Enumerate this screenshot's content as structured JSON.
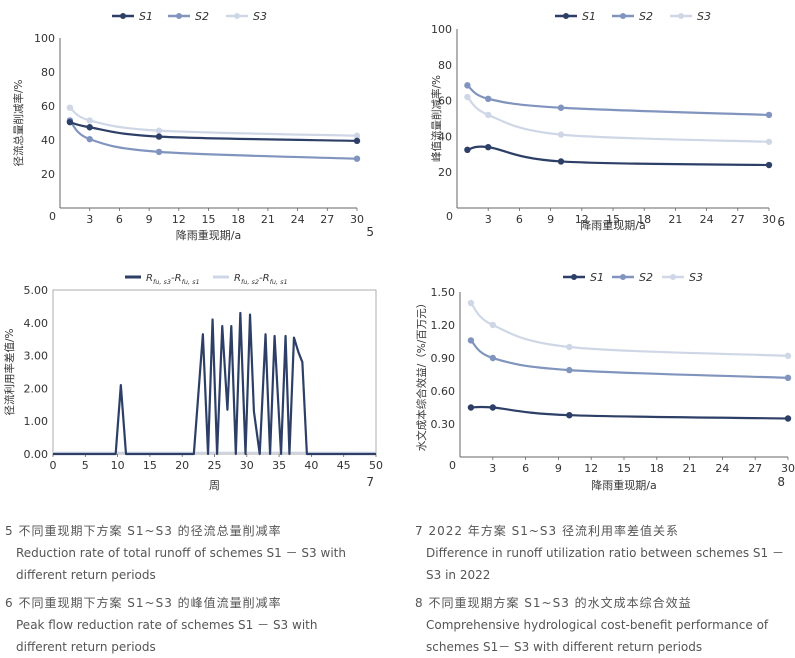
{
  "colors": {
    "S1": "#2d3f66",
    "S2": "#8094be",
    "S3": "#cfd7e7",
    "axis": "#666666",
    "text": "#333333"
  },
  "chart_data": [
    {
      "type": "line",
      "id": "fig5",
      "number": "5",
      "legend": [
        "S1",
        "S2",
        "S3"
      ],
      "ylabel": "径流总量削减率/%",
      "xlabel": "降雨重现期/a",
      "ylim": [
        0,
        100
      ],
      "yticks": [
        "100",
        "80",
        "60",
        "40",
        "20",
        "0"
      ],
      "xticks": [
        "3",
        "6",
        "9",
        "12",
        "15",
        "18",
        "21",
        "24",
        "27",
        "30"
      ],
      "series": [
        {
          "name": "S1",
          "x": [
            1,
            3,
            10,
            30
          ],
          "y": [
            50.5,
            47.5,
            42,
            39.5
          ]
        },
        {
          "name": "S2",
          "x": [
            1,
            3,
            10,
            30
          ],
          "y": [
            51.5,
            40.5,
            33,
            29
          ]
        },
        {
          "name": "S3",
          "x": [
            1,
            3,
            10,
            30
          ],
          "y": [
            59,
            51.5,
            45.5,
            42.5
          ]
        }
      ]
    },
    {
      "type": "line",
      "id": "fig6",
      "number": "6",
      "legend": [
        "S1",
        "S2",
        "S3"
      ],
      "ylabel": "峰值流量削减率/%",
      "xlabel": "降雨重现期/a",
      "ylim": [
        0,
        100
      ],
      "yticks": [
        "100",
        "80",
        "60",
        "40",
        "20",
        "0"
      ],
      "xticks": [
        "3",
        "6",
        "9",
        "12",
        "15",
        "18",
        "21",
        "24",
        "27",
        "30"
      ],
      "series": [
        {
          "name": "S1",
          "x": [
            1,
            3,
            10,
            30
          ],
          "y": [
            32.5,
            34,
            26,
            24
          ]
        },
        {
          "name": "S2",
          "x": [
            1,
            3,
            10,
            30
          ],
          "y": [
            68.5,
            61,
            56,
            52
          ]
        },
        {
          "name": "S3",
          "x": [
            1,
            3,
            10,
            30
          ],
          "y": [
            62,
            52,
            41,
            37
          ]
        }
      ]
    },
    {
      "type": "line",
      "id": "fig7",
      "number": "7",
      "legend": [
        "R",
        "R"
      ],
      "legend_sub": [
        "fu, s3",
        "fu, s2"
      ],
      "legend_mid": [
        "-R",
        "-R"
      ],
      "legend_end": [
        "fu, s1",
        "fu, s1"
      ],
      "ylabel": "径流利用率差值/%",
      "xlabel": "周",
      "ylim": [
        0,
        5
      ],
      "yticks": [
        "5.00",
        "4.00",
        "3.00",
        "2.00",
        "1.00",
        "0.00"
      ],
      "xticks": [
        "0",
        "5",
        "10",
        "15",
        "20",
        "25",
        "30",
        "35",
        "40",
        "45",
        "50"
      ],
      "series": [
        {
          "name": "Rfu,s3-Rfu,s1",
          "x": [
            0,
            9.7,
            10.5,
            11.3,
            21.8,
            23.2,
            24,
            24.7,
            25.4,
            26.2,
            27,
            27.6,
            28.3,
            29,
            29.8,
            30.5,
            31.1,
            32,
            32.9,
            33.6,
            34.3,
            35.3,
            36,
            36.6,
            37.3,
            38,
            38.6,
            39.3,
            50
          ],
          "y": [
            0,
            0,
            2.1,
            0,
            0,
            3.65,
            0,
            4.1,
            0,
            3.9,
            1.35,
            3.9,
            0,
            4.3,
            0,
            4.25,
            1.3,
            0,
            3.65,
            0,
            3.6,
            0,
            3.6,
            0,
            3.55,
            3.1,
            2.8,
            0,
            0
          ]
        },
        {
          "name": "Rfu,s2-Rfu,s1",
          "x": [
            0,
            50
          ],
          "y": [
            0.05,
            0.05
          ]
        }
      ]
    },
    {
      "type": "line",
      "id": "fig8",
      "number": "8",
      "legend": [
        "S1",
        "S2",
        "S3"
      ],
      "ylabel": "水文成本综合效益/（%/百万元）",
      "xlabel": "降雨重现期/a",
      "ylim": [
        0,
        1.5
      ],
      "yticks": [
        "1.50",
        "1.20",
        "0.90",
        "0.60",
        "0.30",
        "0"
      ],
      "xticks": [
        "3",
        "6",
        "9",
        "12",
        "15",
        "18",
        "21",
        "24",
        "27",
        "30"
      ],
      "series": [
        {
          "name": "S1",
          "x": [
            1,
            3,
            10,
            30
          ],
          "y": [
            0.45,
            0.45,
            0.38,
            0.35
          ]
        },
        {
          "name": "S2",
          "x": [
            1,
            3,
            10,
            30
          ],
          "y": [
            1.06,
            0.9,
            0.79,
            0.72
          ]
        },
        {
          "name": "S3",
          "x": [
            1,
            3,
            10,
            30
          ],
          "y": [
            1.4,
            1.2,
            1.0,
            0.92
          ]
        }
      ]
    }
  ],
  "captions": [
    {
      "zh": "5 不同重现期下方案 S1~S3 的径流总量削减率",
      "en1": "Reduction rate of total runoff of schemes S1 － S3 with",
      "en2": "different return periods"
    },
    {
      "zh": "6 不同重现期下方案 S1~S3 的峰值流量削减率",
      "en1": "Peak flow reduction rate of schemes S1 － S3 with",
      "en2": "different return periods"
    },
    {
      "zh": "7 2022 年方案 S1~S3 径流利用率差值关系",
      "en1": "Difference in runoff utilization ratio between schemes S1 －",
      "en2": "S3 in 2022"
    },
    {
      "zh": "8 不同重现期方案 S1~S3 的水文成本综合效益",
      "en1": "Comprehensive hydrological cost-benefit performance of",
      "en2": "schemes S1－ S3 with different return periods"
    }
  ]
}
